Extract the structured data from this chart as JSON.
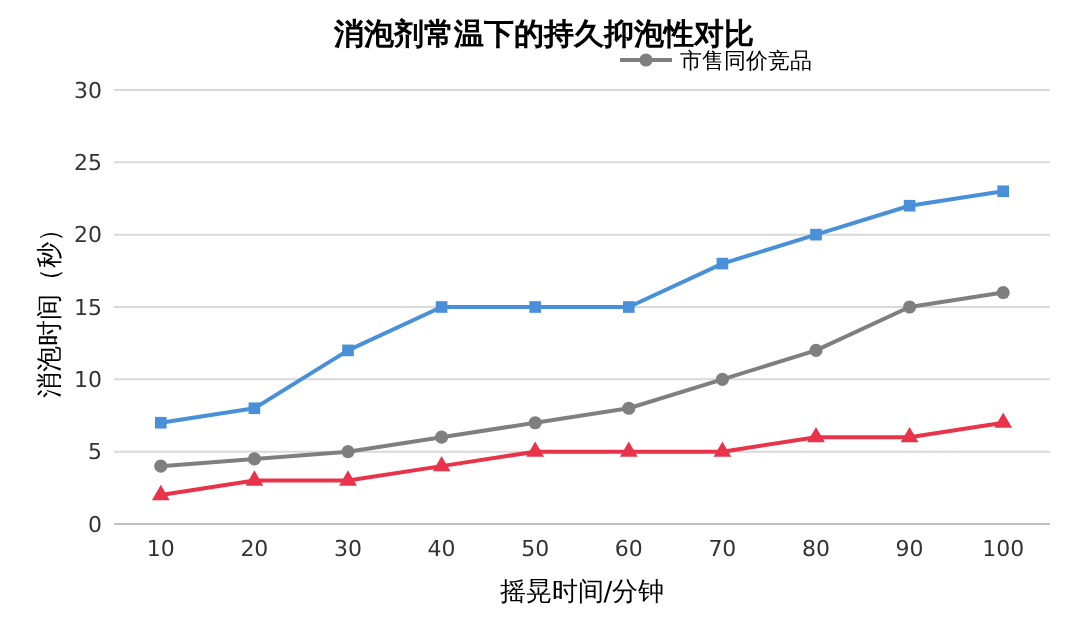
{
  "chart_data": {
    "type": "line",
    "title": "消泡剂常温下的持久抑泡性对比",
    "xlabel": "摇晃时间/分钟",
    "ylabel": "消泡时间（秒）",
    "categories": [
      "10",
      "20",
      "30",
      "40",
      "50",
      "60",
      "70",
      "80",
      "90",
      "100"
    ],
    "series": [
      {
        "color": "#e8334a",
        "marker": "triangle",
        "values": [
          2,
          3,
          3,
          4,
          5,
          5,
          5,
          6,
          6,
          7
        ]
      },
      {
        "color": "#4a90d9",
        "marker": "square",
        "values": [
          7,
          8,
          12,
          15,
          15,
          15,
          18,
          20,
          22,
          23
        ]
      },
      {
        "name": "市售同价竞品",
        "color": "#7f7f7f",
        "marker": "circle",
        "values": [
          4,
          4.5,
          5,
          6,
          7,
          8,
          10,
          12,
          15,
          16
        ]
      }
    ],
    "ylim": [
      0,
      30
    ],
    "yticks": [
      0,
      5,
      10,
      15,
      20,
      25,
      30
    ],
    "grid": "y",
    "legend": "top",
    "line_style": "solid"
  }
}
